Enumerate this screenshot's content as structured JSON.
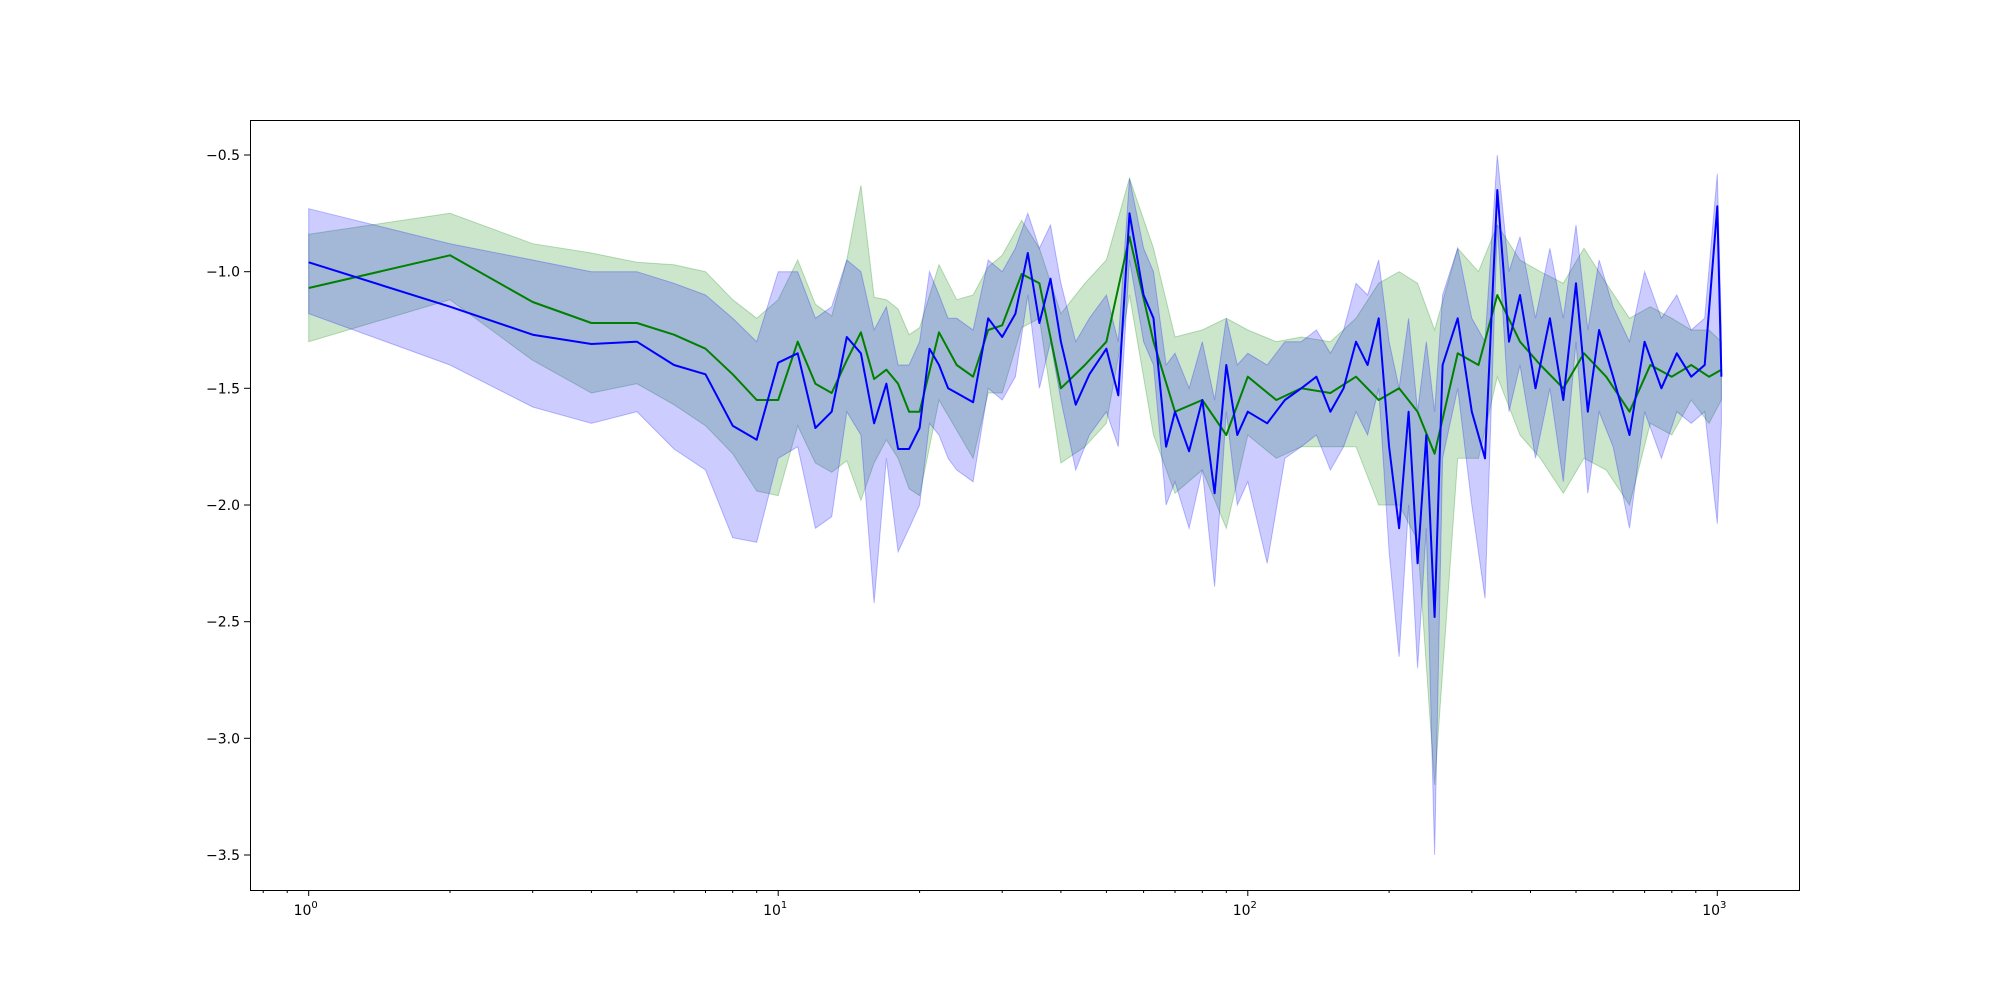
{
  "chart_data": {
    "type": "line",
    "xscale": "log",
    "xlim": [
      0.75,
      1500
    ],
    "ylim": [
      -3.65,
      -0.35
    ],
    "grid": false,
    "x_ticks": [
      {
        "value": 1,
        "base": "10",
        "exp": "0"
      },
      {
        "value": 10,
        "base": "10",
        "exp": "1"
      },
      {
        "value": 100,
        "base": "10",
        "exp": "2"
      },
      {
        "value": 1000,
        "base": "10",
        "exp": "3"
      }
    ],
    "y_ticks": [
      {
        "value": -0.5,
        "label": "−0.5"
      },
      {
        "value": -1.0,
        "label": "−1.0"
      },
      {
        "value": -1.5,
        "label": "−1.5"
      },
      {
        "value": -2.0,
        "label": "−2.0"
      },
      {
        "value": -2.5,
        "label": "−2.5"
      },
      {
        "value": -3.0,
        "label": "−3.0"
      },
      {
        "value": -3.5,
        "label": "−3.5"
      }
    ],
    "series": [
      {
        "color": "#008000",
        "band_color": "#008000",
        "x": [
          1,
          2,
          3,
          4,
          5,
          6,
          7,
          8,
          9,
          10,
          11,
          12,
          13,
          14,
          15,
          16,
          17,
          18,
          19,
          20,
          22,
          24,
          26,
          28,
          30,
          33,
          36,
          40,
          45,
          50,
          56,
          63,
          70,
          80,
          90,
          100,
          115,
          130,
          150,
          170,
          190,
          210,
          230,
          250,
          280,
          310,
          340,
          380,
          420,
          470,
          520,
          580,
          650,
          720,
          800,
          880,
          960,
          1020
        ],
        "y": [
          -1.07,
          -0.93,
          -1.13,
          -1.22,
          -1.22,
          -1.27,
          -1.33,
          -1.44,
          -1.55,
          -1.55,
          -1.3,
          -1.48,
          -1.52,
          -1.38,
          -1.26,
          -1.46,
          -1.42,
          -1.48,
          -1.6,
          -1.6,
          -1.26,
          -1.4,
          -1.45,
          -1.25,
          -1.23,
          -1.01,
          -1.05,
          -1.5,
          -1.4,
          -1.3,
          -0.85,
          -1.3,
          -1.6,
          -1.55,
          -1.7,
          -1.45,
          -1.55,
          -1.5,
          -1.52,
          -1.45,
          -1.55,
          -1.5,
          -1.6,
          -1.78,
          -1.35,
          -1.4,
          -1.1,
          -1.3,
          -1.4,
          -1.5,
          -1.35,
          -1.45,
          -1.6,
          -1.4,
          -1.45,
          -1.4,
          -1.45,
          -1.42
        ],
        "upper": [
          -0.84,
          -0.75,
          -0.88,
          -0.92,
          -0.96,
          -0.97,
          -1.0,
          -1.12,
          -1.2,
          -1.12,
          -0.95,
          -1.14,
          -1.19,
          -0.95,
          -0.63,
          -1.11,
          -1.12,
          -1.16,
          -1.27,
          -1.24,
          -0.97,
          -1.12,
          -1.1,
          -0.98,
          -0.93,
          -0.78,
          -0.9,
          -1.18,
          -1.05,
          -0.95,
          -0.6,
          -0.9,
          -1.28,
          -1.25,
          -1.2,
          -1.25,
          -1.3,
          -1.28,
          -1.3,
          -1.2,
          -1.05,
          -1.0,
          -1.05,
          -1.25,
          -0.9,
          -1.0,
          -0.8,
          -0.95,
          -1.0,
          -1.05,
          -0.9,
          -1.05,
          -1.2,
          -1.15,
          -1.2,
          -1.25,
          -1.25,
          -1.3
        ],
        "lower": [
          -1.3,
          -1.12,
          -1.38,
          -1.52,
          -1.48,
          -1.57,
          -1.66,
          -1.78,
          -1.94,
          -1.96,
          -1.66,
          -1.82,
          -1.86,
          -1.81,
          -1.98,
          -1.82,
          -1.72,
          -1.8,
          -1.93,
          -1.96,
          -1.55,
          -1.68,
          -1.8,
          -1.52,
          -1.52,
          -1.24,
          -1.2,
          -1.82,
          -1.75,
          -1.65,
          -1.1,
          -1.7,
          -1.95,
          -1.85,
          -2.1,
          -1.7,
          -1.8,
          -1.75,
          -1.75,
          -1.75,
          -2.0,
          -2.0,
          -2.15,
          -3.2,
          -1.8,
          -1.8,
          -1.45,
          -1.7,
          -1.8,
          -1.95,
          -1.8,
          -1.85,
          -2.0,
          -1.65,
          -1.7,
          -1.55,
          -1.65,
          -1.55
        ]
      },
      {
        "color": "#0000ff",
        "band_color": "#0000ff",
        "x": [
          1,
          2,
          3,
          4,
          5,
          6,
          7,
          8,
          9,
          10,
          11,
          12,
          13,
          14,
          15,
          16,
          17,
          18,
          19,
          20,
          21,
          22,
          23,
          24,
          26,
          28,
          30,
          32,
          34,
          36,
          38,
          40,
          43,
          46,
          50,
          53,
          56,
          60,
          63,
          67,
          70,
          75,
          80,
          85,
          90,
          95,
          100,
          110,
          120,
          130,
          140,
          150,
          160,
          170,
          180,
          190,
          200,
          210,
          220,
          230,
          240,
          250,
          260,
          280,
          300,
          320,
          340,
          360,
          380,
          410,
          440,
          470,
          500,
          530,
          560,
          600,
          650,
          700,
          760,
          820,
          880,
          940,
          1000,
          1020
        ],
        "y": [
          -0.96,
          -1.15,
          -1.27,
          -1.31,
          -1.3,
          -1.4,
          -1.44,
          -1.66,
          -1.72,
          -1.39,
          -1.35,
          -1.67,
          -1.6,
          -1.28,
          -1.35,
          -1.65,
          -1.48,
          -1.76,
          -1.76,
          -1.67,
          -1.33,
          -1.4,
          -1.5,
          -1.52,
          -1.56,
          -1.2,
          -1.28,
          -1.18,
          -0.92,
          -1.22,
          -1.03,
          -1.3,
          -1.57,
          -1.44,
          -1.33,
          -1.53,
          -0.75,
          -1.1,
          -1.2,
          -1.75,
          -1.6,
          -1.77,
          -1.55,
          -1.95,
          -1.4,
          -1.7,
          -1.6,
          -1.65,
          -1.55,
          -1.5,
          -1.45,
          -1.6,
          -1.5,
          -1.3,
          -1.4,
          -1.2,
          -1.75,
          -2.1,
          -1.6,
          -2.25,
          -1.7,
          -2.48,
          -1.4,
          -1.2,
          -1.6,
          -1.8,
          -0.65,
          -1.3,
          -1.1,
          -1.5,
          -1.2,
          -1.55,
          -1.05,
          -1.6,
          -1.25,
          -1.45,
          -1.7,
          -1.3,
          -1.5,
          -1.35,
          -1.45,
          -1.4,
          -0.72,
          -1.45
        ],
        "upper": [
          -0.73,
          -0.88,
          -0.95,
          -1.0,
          -1.0,
          -1.05,
          -1.1,
          -1.2,
          -1.3,
          -1.0,
          -1.0,
          -1.2,
          -1.15,
          -0.95,
          -1.0,
          -1.25,
          -1.15,
          -1.4,
          -1.4,
          -1.3,
          -1.0,
          -1.1,
          -1.2,
          -1.2,
          -1.25,
          -0.95,
          -1.0,
          -0.9,
          -0.75,
          -0.9,
          -0.8,
          -1.05,
          -1.3,
          -1.2,
          -1.1,
          -1.3,
          -0.6,
          -0.9,
          -1.0,
          -1.4,
          -1.35,
          -1.5,
          -1.3,
          -1.55,
          -1.2,
          -1.4,
          -1.35,
          -1.4,
          -1.3,
          -1.3,
          -1.25,
          -1.35,
          -1.25,
          -1.05,
          -1.1,
          -0.95,
          -1.3,
          -1.5,
          -1.2,
          -1.6,
          -1.3,
          -1.6,
          -1.1,
          -0.9,
          -1.2,
          -1.3,
          -0.5,
          -1.0,
          -0.85,
          -1.2,
          -0.9,
          -1.2,
          -0.8,
          -1.25,
          -0.95,
          -1.15,
          -1.3,
          -1.0,
          -1.2,
          -1.1,
          -1.25,
          -1.2,
          -0.58,
          -1.25
        ],
        "lower": [
          -1.18,
          -1.4,
          -1.58,
          -1.65,
          -1.6,
          -1.76,
          -1.85,
          -2.14,
          -2.16,
          -1.8,
          -1.75,
          -2.1,
          -2.05,
          -1.6,
          -1.7,
          -2.42,
          -1.8,
          -2.2,
          -2.1,
          -2.0,
          -1.65,
          -1.7,
          -1.8,
          -1.85,
          -1.9,
          -1.5,
          -1.55,
          -1.45,
          -1.1,
          -1.5,
          -1.3,
          -1.55,
          -1.85,
          -1.7,
          -1.6,
          -1.75,
          -0.95,
          -1.3,
          -1.4,
          -2.0,
          -1.9,
          -2.1,
          -1.85,
          -2.35,
          -1.6,
          -2.0,
          -1.9,
          -2.25,
          -1.8,
          -1.75,
          -1.7,
          -1.85,
          -1.75,
          -1.6,
          -1.7,
          -1.5,
          -2.2,
          -2.65,
          -2.0,
          -2.7,
          -2.1,
          -3.5,
          -1.8,
          -1.5,
          -2.0,
          -2.4,
          -0.8,
          -1.6,
          -1.4,
          -1.8,
          -1.5,
          -1.9,
          -1.3,
          -1.95,
          -1.6,
          -1.75,
          -2.1,
          -1.6,
          -1.8,
          -1.6,
          -1.65,
          -1.6,
          -2.08,
          -1.65
        ]
      }
    ]
  }
}
